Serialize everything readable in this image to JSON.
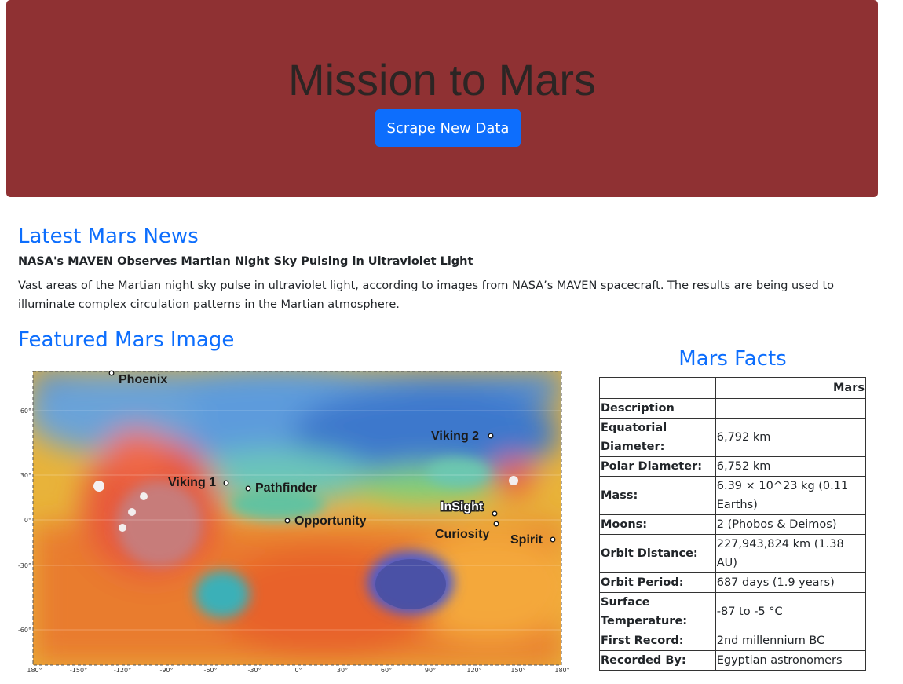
{
  "header": {
    "title": "Mission to Mars",
    "scrape_button": "Scrape New Data"
  },
  "news": {
    "heading": "Latest Mars News",
    "title": "NASA's MAVEN Observes Martian Night Sky Pulsing in Ultraviolet Light",
    "paragraph": "Vast areas of the Martian night sky pulse in ultraviolet light, according to images from NASA’s MAVEN spacecraft. The results are being used to illuminate complex circulation patterns in the Martian atmosphere."
  },
  "featured": {
    "heading": "Featured Mars Image",
    "landers": [
      "Phoenix",
      "Viking 2",
      "Viking 1",
      "Pathfinder",
      "InSight",
      "Opportunity",
      "Curiosity",
      "Spirit"
    ],
    "lat_labels": [
      "60°",
      "30°",
      "0°",
      "-30°",
      "-60°"
    ],
    "lon_labels": [
      "180°",
      "-150°",
      "-120°",
      "-90°",
      "-60°",
      "-30°",
      "0°",
      "30°",
      "60°",
      "90°",
      "120°",
      "150°",
      "180°"
    ]
  },
  "facts": {
    "heading": "Mars Facts",
    "column_header": "Mars",
    "rows": [
      {
        "label": "Description",
        "value": ""
      },
      {
        "label": "Equatorial Diameter:",
        "value": "6,792 km"
      },
      {
        "label": "Polar Diameter:",
        "value": "6,752 km"
      },
      {
        "label": "Mass:",
        "value": "6.39 × 10^23 kg (0.11 Earths)"
      },
      {
        "label": "Moons:",
        "value": "2 (Phobos & Deimos)"
      },
      {
        "label": "Orbit Distance:",
        "value": "227,943,824 km (1.38 AU)"
      },
      {
        "label": "Orbit Period:",
        "value": "687 days (1.9 years)"
      },
      {
        "label": "Surface Temperature:",
        "value": "-87 to -5 °C"
      },
      {
        "label": "First Record:",
        "value": "2nd millennium BC"
      },
      {
        "label": "Recorded By:",
        "value": "Egyptian astronomers"
      }
    ]
  }
}
